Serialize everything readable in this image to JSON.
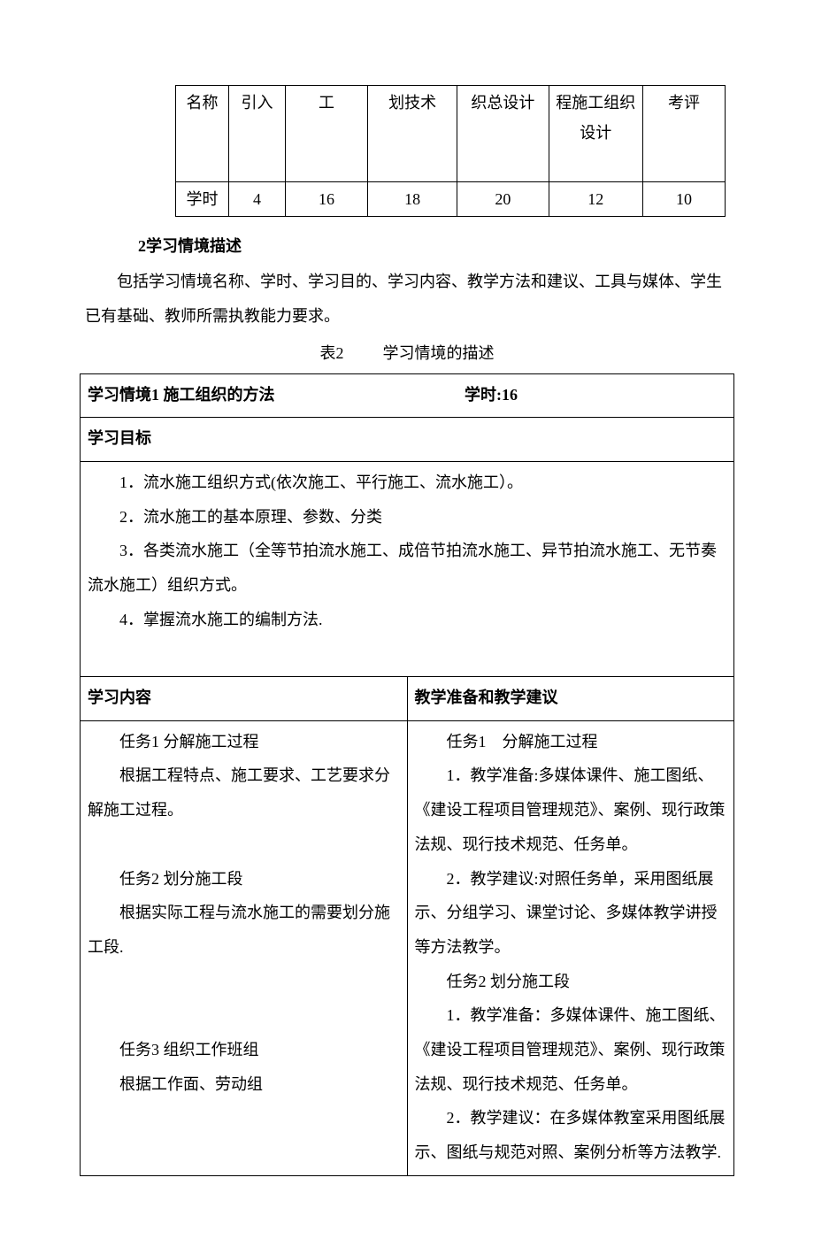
{
  "top_table": {
    "rows": [
      {
        "label": "名称",
        "cells": [
          "引入",
          "工",
          "划技术",
          "织总设计",
          "程施工组织设计",
          "考评"
        ]
      },
      {
        "label": "学时",
        "cells": [
          "4",
          "16",
          "18",
          "20",
          "12",
          "10"
        ]
      }
    ]
  },
  "section2": {
    "heading": "2学习情境描述",
    "para1": "包括学习情境名称、学时、学习目的、学习内容、教学方法和建议、工具与媒体、学生已有基础、教师所需执教能力要求。",
    "table_caption_prefix": "表2",
    "table_caption_title": "学习情境的描述"
  },
  "situation": {
    "title": "学习情境1  施工组织的方法",
    "hours_label": "学时:16",
    "goals_header": "学习目标",
    "goals": [
      "1．流水施工组织方式(依次施工、平行施工、流水施工）。",
      "2．流水施工的基本原理、参数、分类",
      "3．各类流水施工（全等节拍流水施工、成倍节拍流水施工、异节拍流水施工、无节奏流水施工）组织方式。",
      "4．掌握流水施工的编制方法."
    ],
    "cols": {
      "left_header": "学习内容",
      "right_header": "教学准备和教学建议"
    },
    "left_content": [
      "任务1 分解施工过程",
      "根据工程特点、施工要求、工艺要求分解施工过程。",
      "",
      "任务2 划分施工段",
      "根据实际工程与流水施工的需要划分施工段.",
      "",
      "",
      "任务3 组织工作班组",
      "根据工作面、劳动组"
    ],
    "right_content": [
      "任务1　分解施工过程",
      "1．教学准备:多媒体课件、施工图纸、《建设工程项目管理规范》、案例、现行政策法规、现行技术规范、任务单。",
      "2．教学建议:对照任务单，采用图纸展示、分组学习、课堂讨论、多媒体教学讲授等方法教学。",
      "任务2 划分施工段",
      "1．教学准备：多媒体课件、施工图纸、《建设工程项目管理规范》、案例、现行政策法规、现行技术规范、任务单。",
      "2．教学建议：在多媒体教室采用图纸展示、图纸与规范对照、案例分析等方法教学."
    ]
  },
  "colors": {
    "text": "#000000",
    "bg": "#ffffff",
    "border": "#000000"
  },
  "typography": {
    "base_font_size_pt": 13.5,
    "line_height": 2.2,
    "font_family": "SimSun"
  }
}
